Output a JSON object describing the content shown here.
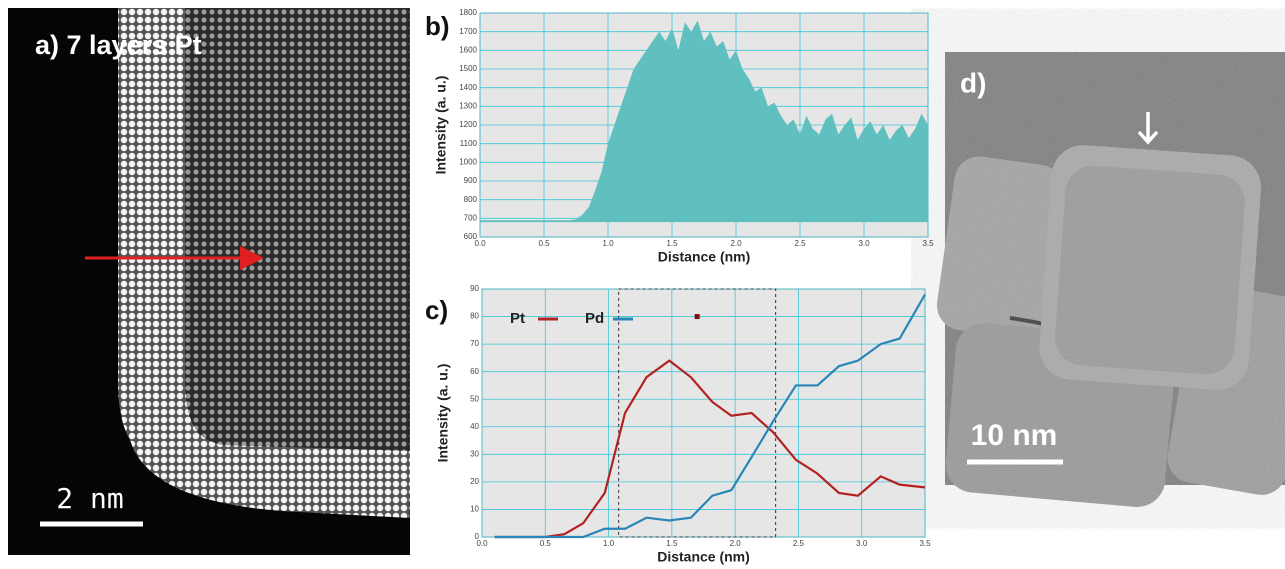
{
  "panel_a": {
    "label": "a) 7 layers Pt",
    "scale_bar": "2 nm"
  },
  "panel_d": {
    "label": "d)",
    "scale_bar": "10 nm"
  },
  "chart_data": [
    {
      "type": "area",
      "label": "b)",
      "xlabel": "Distance (nm)",
      "ylabel": "Intensity (a. u.)",
      "color": "#5fc0bf",
      "fill_to": 680,
      "x": [
        0,
        0.05,
        0.1,
        0.15,
        0.2,
        0.25,
        0.3,
        0.35,
        0.4,
        0.45,
        0.5,
        0.55,
        0.6,
        0.65,
        0.7,
        0.75,
        0.8,
        0.85,
        0.9,
        0.95,
        1.0,
        1.05,
        1.1,
        1.15,
        1.2,
        1.25,
        1.3,
        1.35,
        1.4,
        1.45,
        1.5,
        1.55,
        1.6,
        1.65,
        1.7,
        1.75,
        1.8,
        1.85,
        1.9,
        1.95,
        2.0,
        2.05,
        2.1,
        2.15,
        2.2,
        2.25,
        2.3,
        2.35,
        2.4,
        2.45,
        2.5,
        2.55,
        2.6,
        2.65,
        2.7,
        2.75,
        2.8,
        2.85,
        2.9,
        2.95,
        3.0,
        3.05,
        3.1,
        3.15,
        3.2,
        3.25,
        3.3,
        3.35,
        3.4,
        3.45,
        3.5
      ],
      "values": [
        690,
        690,
        690,
        690,
        690,
        690,
        690,
        690,
        690,
        690,
        690,
        690,
        690,
        690,
        690,
        695,
        720,
        760,
        850,
        950,
        1100,
        1200,
        1300,
        1400,
        1500,
        1550,
        1600,
        1650,
        1700,
        1650,
        1720,
        1600,
        1750,
        1700,
        1760,
        1650,
        1700,
        1620,
        1650,
        1550,
        1600,
        1500,
        1450,
        1380,
        1400,
        1300,
        1320,
        1250,
        1200,
        1230,
        1150,
        1250,
        1180,
        1150,
        1230,
        1260,
        1150,
        1200,
        1240,
        1120,
        1180,
        1220,
        1150,
        1200,
        1120,
        1170,
        1200,
        1130,
        1180,
        1260,
        1200
      ],
      "xlim": [
        0,
        3.5
      ],
      "ylim": [
        600,
        1800
      ],
      "xticks": [
        {
          "value": 0,
          "label": "0.0"
        },
        0.5,
        {
          "value": 1,
          "label": "1.0"
        },
        1.5,
        {
          "value": 2,
          "label": "2.0"
        },
        2.5,
        {
          "value": 3,
          "label": "3.0"
        },
        3.5
      ],
      "yticks": [
        600,
        700,
        800,
        900,
        1000,
        1100,
        1200,
        1300,
        1400,
        1500,
        1600,
        1700,
        1800
      ],
      "grid": true
    },
    {
      "type": "line",
      "label": "c)",
      "xlabel": "Distance (nm)",
      "ylabel": "Intensity (a. u.)",
      "x": [
        0.1,
        0.3,
        0.5,
        0.65,
        0.8,
        0.97,
        1.13,
        1.3,
        1.48,
        1.65,
        1.82,
        1.97,
        2.13,
        2.3,
        2.48,
        2.65,
        2.82,
        2.97,
        3.15,
        3.3,
        3.5
      ],
      "series": [
        {
          "name": "Pt",
          "color": "#b22222",
          "values": [
            0,
            0,
            0,
            1,
            5,
            16,
            45,
            58,
            64,
            58,
            49,
            44,
            45,
            38,
            28,
            23,
            16,
            15,
            22,
            19,
            18
          ]
        },
        {
          "name": "Pd",
          "color": "#2a86b8",
          "values": [
            0,
            0,
            0,
            0,
            0,
            3,
            3,
            7,
            6,
            7,
            15,
            17,
            29,
            42,
            55,
            55,
            62,
            64,
            70,
            72,
            88
          ]
        }
      ],
      "highlight_x": [
        1.08,
        2.32
      ],
      "marker": {
        "x": 1.7,
        "y": 80,
        "color": "#7a1010"
      },
      "xlim": [
        0,
        3.5
      ],
      "ylim": [
        0,
        90
      ],
      "xticks": [
        {
          "value": 0,
          "label": "0.0"
        },
        0.5,
        {
          "value": 1,
          "label": "1.0"
        },
        1.5,
        {
          "value": 2,
          "label": "2.0"
        },
        2.5,
        {
          "value": 3,
          "label": "3.0"
        },
        3.5
      ],
      "yticks": [
        0,
        10,
        20,
        30,
        40,
        50,
        60,
        70,
        80,
        90
      ],
      "grid": true
    }
  ]
}
